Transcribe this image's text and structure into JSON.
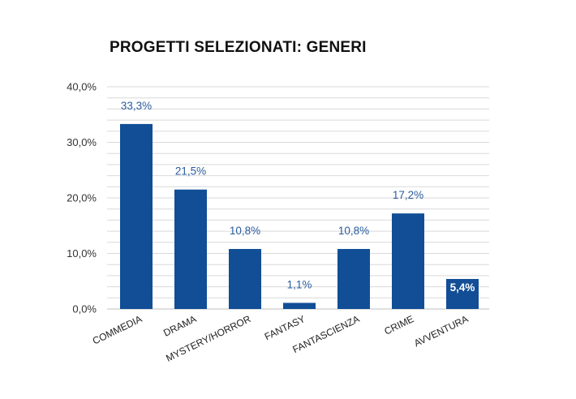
{
  "chart_data": {
    "type": "bar",
    "title": "PROGETTI SELEZIONATI: GENERI",
    "xlabel": "",
    "ylabel": "",
    "categories": [
      "COMMEDIA",
      "DRAMA",
      "MYSTERY/HORROR",
      "FANTASY",
      "FANTASCIENZA",
      "CRIME",
      "AVVENTURA"
    ],
    "values": [
      33.3,
      21.5,
      10.8,
      1.1,
      10.8,
      17.2,
      5.4
    ],
    "data_labels": [
      "33,3%",
      "21,5%",
      "10,8%",
      "1,1%",
      "10,8%",
      "17,2%",
      "5,4%"
    ],
    "data_label_inside": [
      false,
      false,
      false,
      false,
      false,
      false,
      true
    ],
    "ylim": [
      0,
      40
    ],
    "yticks": [
      0,
      10,
      20,
      30,
      40
    ],
    "ytick_labels": [
      "0,0%",
      "10,0%",
      "20,0%",
      "30,0%",
      "40,0%"
    ],
    "minor_grid_step": 2,
    "grid": true,
    "legend": "none",
    "colors": {
      "bar": "#114e96",
      "label": "#2a5c9e",
      "label_inside": "#ffffff",
      "grid": "#d9d9d9",
      "axis": "#bfbfbf"
    }
  }
}
